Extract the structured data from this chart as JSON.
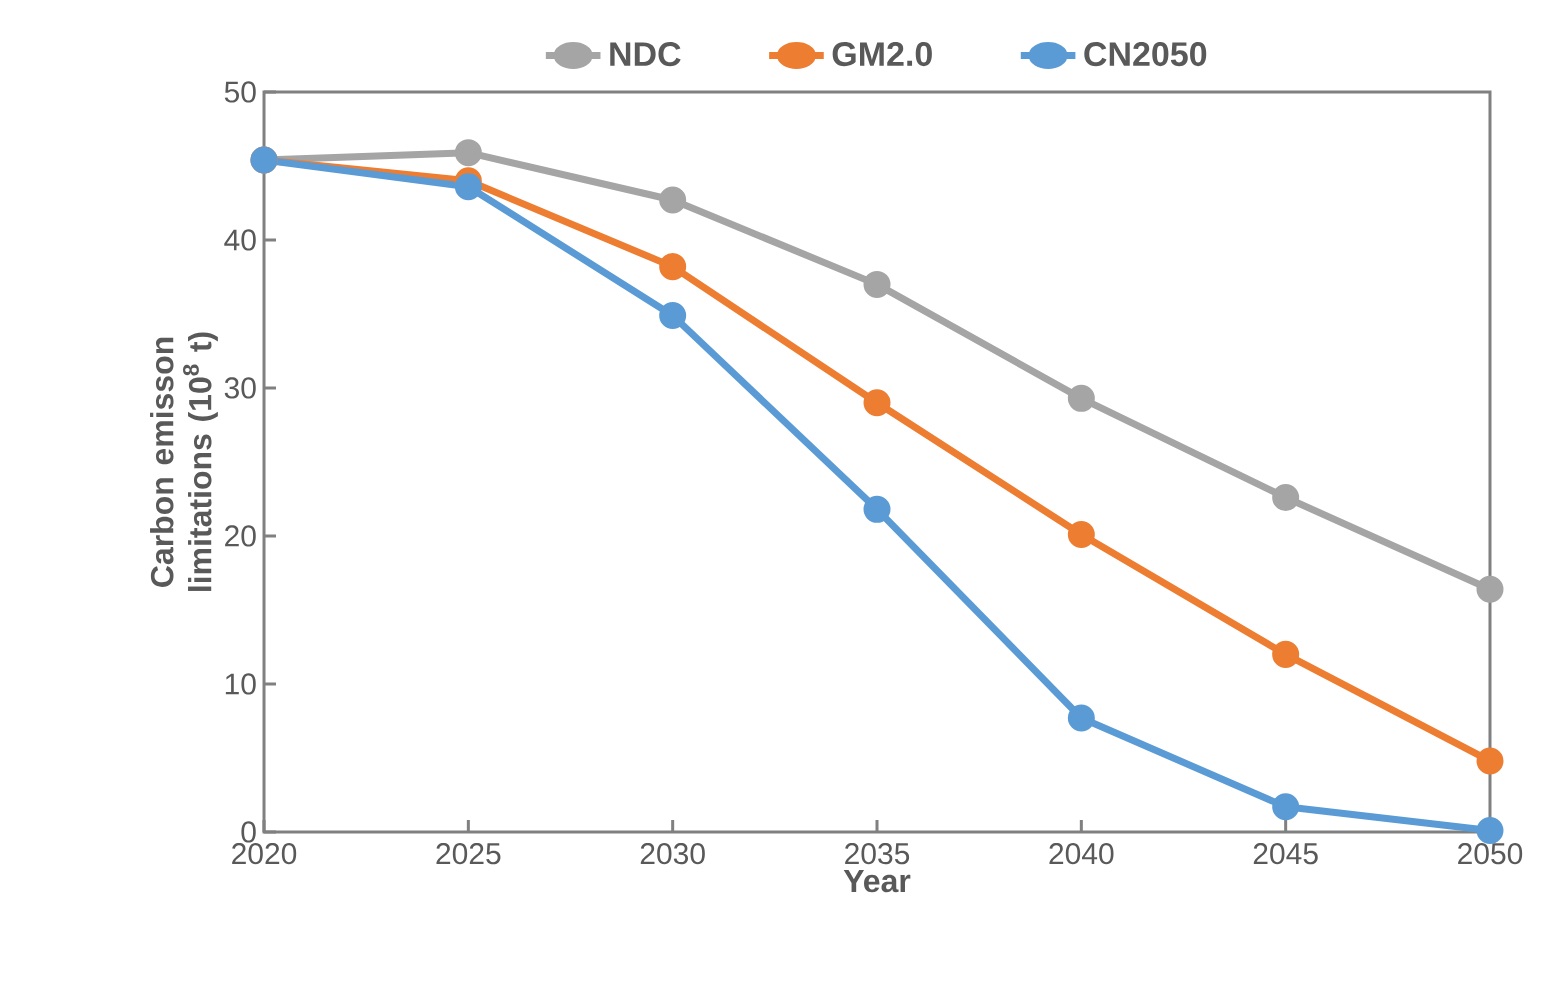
{
  "chart_data": {
    "type": "line",
    "xlabel": "Year",
    "ylabel": "Carbon emisson limitations (10$^{8}$ t)",
    "x": [
      2020,
      2025,
      2030,
      2035,
      2040,
      2045,
      2050
    ],
    "xlim": [
      2020,
      2050
    ],
    "xticks": [
      2020,
      2025,
      2030,
      2035,
      2040,
      2045,
      2050
    ],
    "ylim": [
      0,
      50
    ],
    "yticks": [
      0,
      10,
      20,
      30,
      40,
      50
    ],
    "grid": false,
    "legend": "top",
    "marker": "circle",
    "line_style": "solid",
    "series": [
      {
        "name": "NDC",
        "color": "#a5a5a5",
        "values": [
          45.4,
          45.9,
          42.7,
          37.0,
          29.3,
          22.6,
          16.4
        ]
      },
      {
        "name": "GM2.0",
        "color": "#ed7d31",
        "values": [
          45.4,
          44.0,
          38.2,
          29.0,
          20.1,
          12.0,
          4.8
        ]
      },
      {
        "name": "CN2050",
        "color": "#5b9bd5",
        "values": [
          45.4,
          43.6,
          34.9,
          21.8,
          7.7,
          1.7,
          0.1
        ]
      }
    ]
  }
}
